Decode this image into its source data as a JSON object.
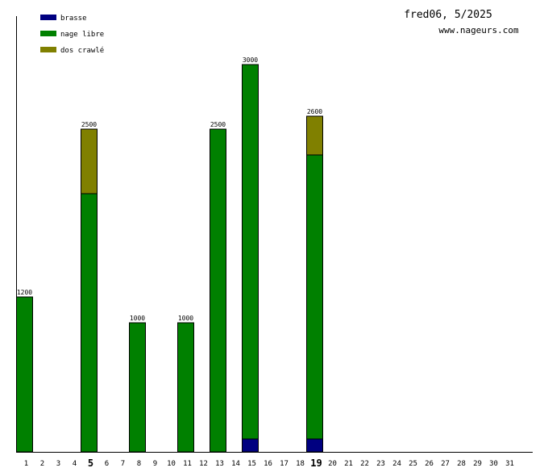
{
  "header": {
    "title": "fred06, 5/2025",
    "site": "www.nageurs.com"
  },
  "chart_data": {
    "type": "bar",
    "stacked": true,
    "categories": [
      "1",
      "2",
      "3",
      "4",
      "5",
      "6",
      "7",
      "8",
      "9",
      "10",
      "11",
      "12",
      "13",
      "14",
      "15",
      "16",
      "17",
      "18",
      "19",
      "20",
      "21",
      "22",
      "23",
      "24",
      "25",
      "26",
      "27",
      "28",
      "29",
      "30",
      "31"
    ],
    "highlighted_categories": [
      "5",
      "19"
    ],
    "series": [
      {
        "name": "brasse",
        "color": "#000080",
        "values": [
          0,
          0,
          0,
          0,
          0,
          0,
          0,
          0,
          0,
          0,
          0,
          0,
          0,
          0,
          100,
          0,
          0,
          0,
          100,
          0,
          0,
          0,
          0,
          0,
          0,
          0,
          0,
          0,
          0,
          0,
          0
        ]
      },
      {
        "name": "nage libre",
        "color": "#008000",
        "values": [
          1200,
          0,
          0,
          0,
          2000,
          0,
          0,
          1000,
          0,
          0,
          1000,
          0,
          2500,
          0,
          2900,
          0,
          0,
          0,
          2200,
          0,
          0,
          0,
          0,
          0,
          0,
          0,
          0,
          0,
          0,
          0,
          0
        ]
      },
      {
        "name": "dos crawlé",
        "color": "#808000",
        "values": [
          0,
          0,
          0,
          0,
          500,
          0,
          0,
          0,
          0,
          0,
          0,
          0,
          0,
          0,
          0,
          0,
          0,
          0,
          300,
          0,
          0,
          0,
          0,
          0,
          0,
          0,
          0,
          0,
          0,
          0,
          0
        ]
      }
    ],
    "totals": [
      1200,
      0,
      0,
      0,
      2500,
      0,
      0,
      1000,
      0,
      0,
      1000,
      0,
      2500,
      0,
      3000,
      0,
      0,
      0,
      2600,
      0,
      0,
      0,
      0,
      0,
      0,
      0,
      0,
      0,
      0,
      0,
      0
    ],
    "ylim": [
      0,
      3000
    ],
    "grid": false,
    "legend_position": "top-left"
  }
}
